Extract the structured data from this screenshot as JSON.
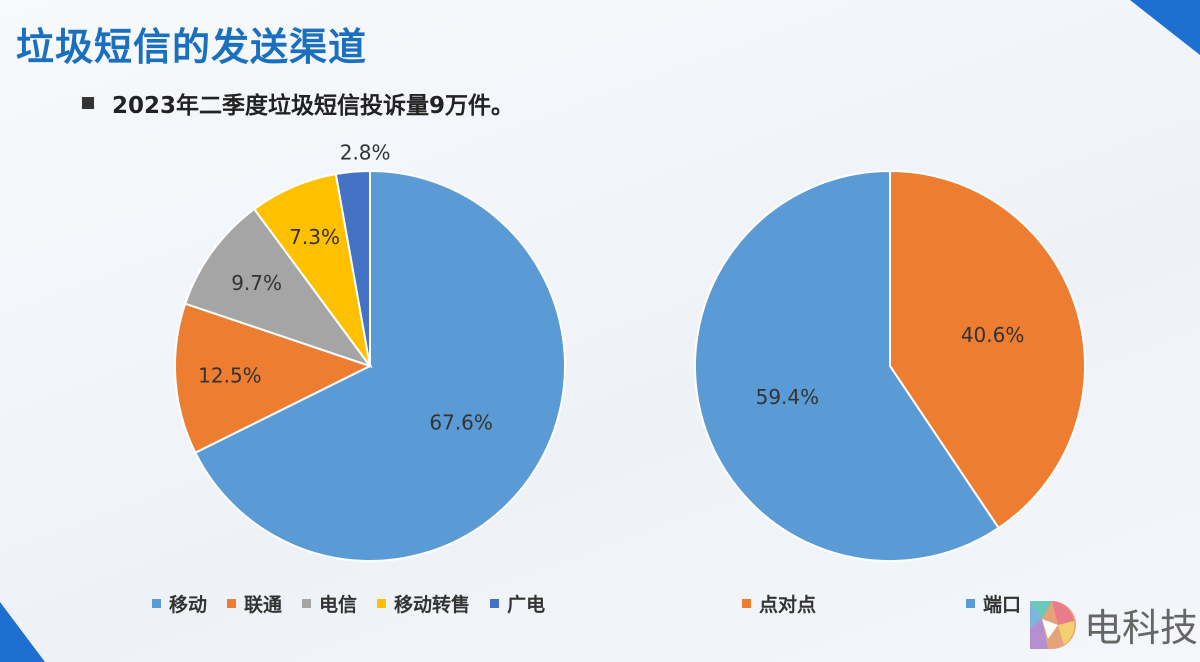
{
  "header": {
    "title": "垃圾短信的发送渠道",
    "bullet": "2023年二季度垃圾短信投诉量9万件。"
  },
  "chart_data": [
    {
      "type": "pie",
      "start": "top",
      "direction": "clockwise",
      "categories": [
        "移动",
        "联通",
        "电信",
        "移动转售",
        "广电"
      ],
      "values": [
        67.6,
        12.5,
        9.7,
        7.3,
        2.8
      ],
      "labels": [
        "67.6%",
        "12.5%",
        "9.7%",
        "7.3%",
        "2.8%"
      ],
      "colors": [
        "#5b9bd5",
        "#ed7d31",
        "#a5a5a5",
        "#ffc000",
        "#4472c4"
      ],
      "legend": "bottom"
    },
    {
      "type": "pie",
      "start": "top",
      "direction": "clockwise",
      "categories": [
        "点对点",
        "端口"
      ],
      "values": [
        40.6,
        59.4
      ],
      "labels": [
        "40.6%",
        "59.4%"
      ],
      "colors": [
        "#ed7d31",
        "#5b9bd5"
      ],
      "legend": "bottom"
    }
  ],
  "logo": {
    "text": "电科技",
    "mark": "®"
  }
}
